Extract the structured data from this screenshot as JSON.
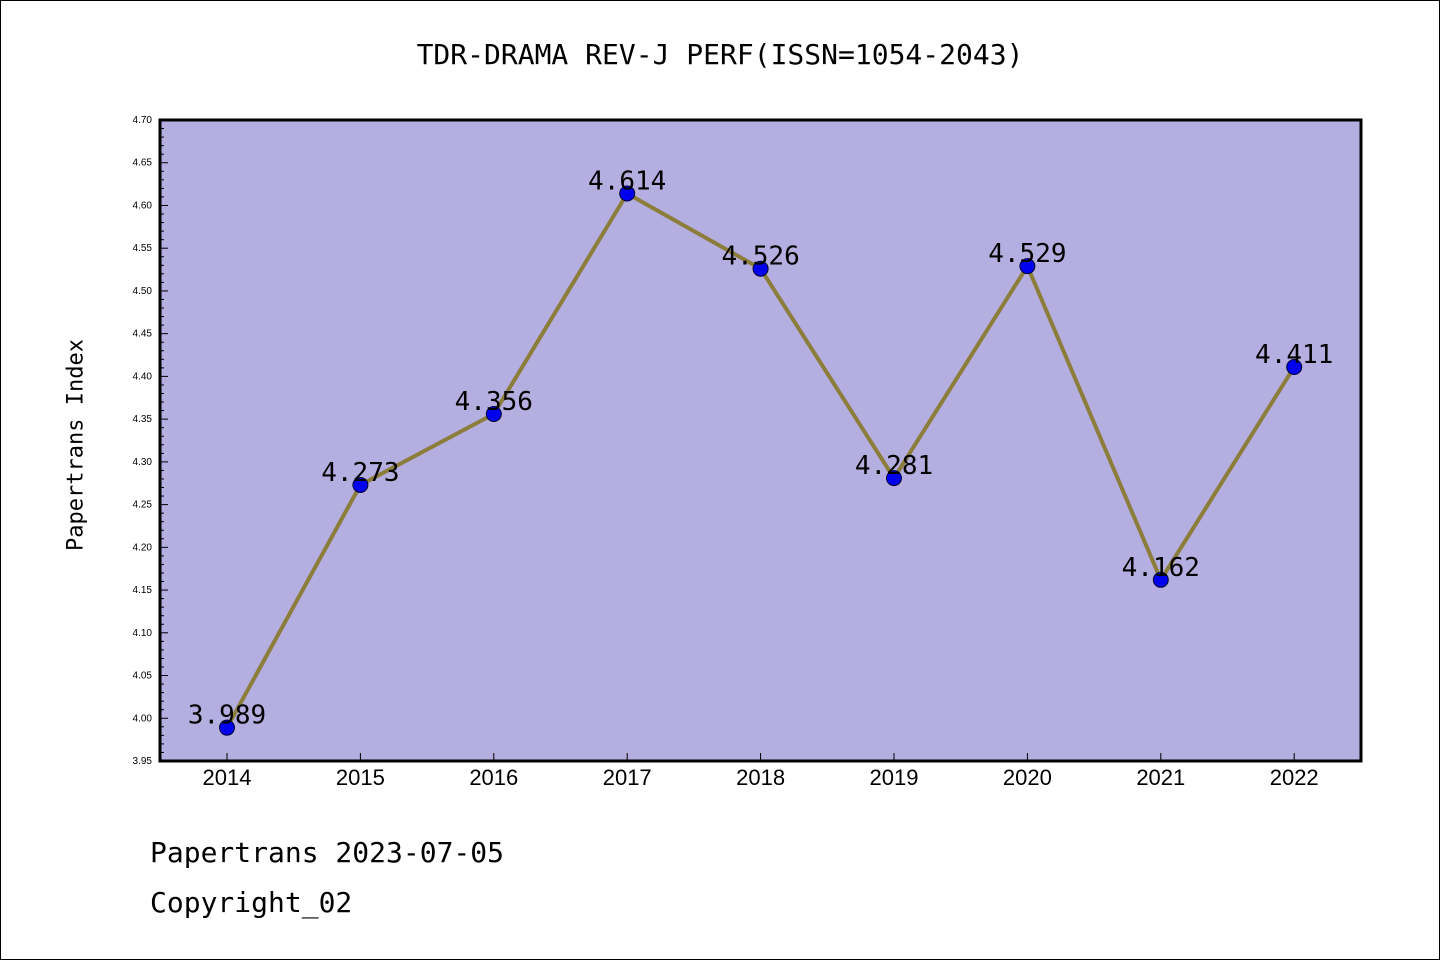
{
  "chart_data": {
    "type": "line",
    "title": "TDR-DRAMA REV-J PERF(ISSN=1054-2043)",
    "xlabel": "",
    "ylabel": "Papertrans Index",
    "categories": [
      "2014",
      "2015",
      "2016",
      "2017",
      "2018",
      "2019",
      "2020",
      "2021",
      "2022"
    ],
    "values": [
      3.989,
      4.273,
      4.356,
      4.614,
      4.526,
      4.281,
      4.529,
      4.162,
      4.411
    ],
    "data_labels": [
      "3.989",
      "4.273",
      "4.356",
      "4.614",
      "4.526",
      "4.281",
      "4.529",
      "4.162",
      "4.411"
    ],
    "ylim": [
      3.95,
      4.7
    ],
    "yticks": [
      "3.95",
      "4.00",
      "4.05",
      "4.10",
      "4.15",
      "4.20",
      "4.25",
      "4.30",
      "4.35",
      "4.40",
      "4.45",
      "4.50",
      "4.55",
      "4.60",
      "4.65",
      "4.70"
    ],
    "grid": false,
    "colors": {
      "plot_background": "#b5aee1",
      "line": "#8b7d3a",
      "marker": "#0000ee"
    }
  },
  "footer": {
    "line1": "Papertrans 2023-07-05",
    "line2": "Copyright_02"
  }
}
